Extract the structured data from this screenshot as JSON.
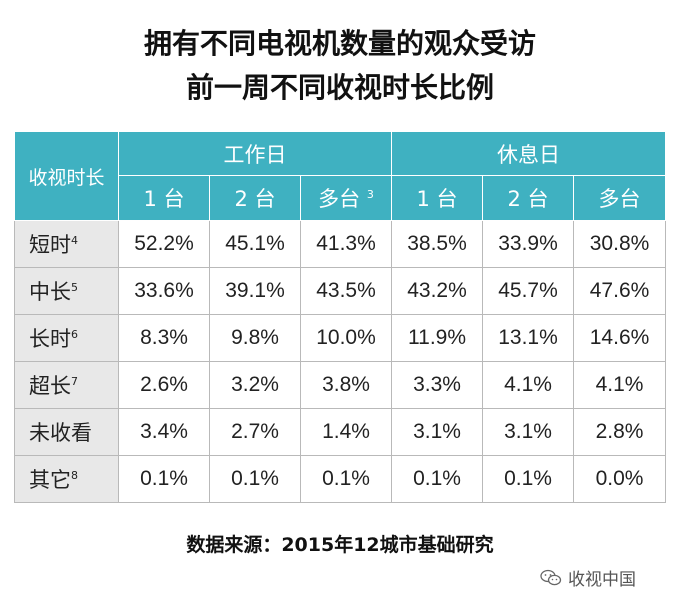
{
  "title": {
    "line1": "拥有不同电视机数量的观众受访",
    "line2": "前一周不同收视时长比例"
  },
  "chart_data": {
    "type": "table",
    "corner_header": "收视时长",
    "groups": [
      "工作日",
      "休息日"
    ],
    "columns": [
      {
        "label": "1 台",
        "sup": ""
      },
      {
        "label": "2 台",
        "sup": ""
      },
      {
        "label": "多台",
        "sup": "3"
      },
      {
        "label": "1 台",
        "sup": ""
      },
      {
        "label": "2 台",
        "sup": ""
      },
      {
        "label": "多台",
        "sup": ""
      }
    ],
    "rows": [
      {
        "label": "短时",
        "sup": "4",
        "values": [
          "52.2%",
          "45.1%",
          "41.3%",
          "38.5%",
          "33.9%",
          "30.8%"
        ]
      },
      {
        "label": "中长",
        "sup": "5",
        "values": [
          "33.6%",
          "39.1%",
          "43.5%",
          "43.2%",
          "45.7%",
          "47.6%"
        ]
      },
      {
        "label": "长时",
        "sup": "6",
        "values": [
          "8.3%",
          "9.8%",
          "10.0%",
          "11.9%",
          "13.1%",
          "14.6%"
        ]
      },
      {
        "label": "超长",
        "sup": "7",
        "values": [
          "2.6%",
          "3.2%",
          "3.8%",
          "3.3%",
          "4.1%",
          "4.1%"
        ]
      },
      {
        "label": "未收看",
        "sup": "",
        "values": [
          "3.4%",
          "2.7%",
          "1.4%",
          "3.1%",
          "3.1%",
          "2.8%"
        ]
      },
      {
        "label": "其它",
        "sup": "8",
        "values": [
          "0.1%",
          "0.1%",
          "0.1%",
          "0.1%",
          "0.1%",
          "0.0%"
        ]
      }
    ]
  },
  "source": "数据来源：2015年12城市基础研究",
  "watermark": {
    "text": "收视中国",
    "icon": "wechat-icon"
  },
  "colors": {
    "header_bg": "#3fb1c1",
    "row_label_bg": "#e8e8e8",
    "grid": "#b9b9b9"
  }
}
